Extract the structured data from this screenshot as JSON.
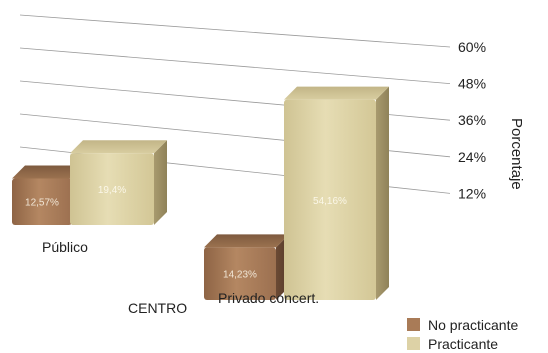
{
  "chart_data": {
    "type": "bar",
    "categories": [
      "Público",
      "Privado concert."
    ],
    "xlabel": "CENTRO",
    "ylabel": "Porcentaje",
    "ylim": [
      0,
      60
    ],
    "yticks": [
      12,
      24,
      36,
      48,
      60
    ],
    "ytick_labels": [
      "12%",
      "24%",
      "36%",
      "48%",
      "60%"
    ],
    "series": [
      {
        "name": "No practicante",
        "values": [
          12.57,
          14.23
        ],
        "labels": [
          "12,57%",
          "14,23%"
        ],
        "color": "#a97b57"
      },
      {
        "name": "Practicante",
        "values": [
          19.4,
          54.16
        ],
        "labels": [
          "19,4%",
          "54,16%"
        ],
        "color": "#ddd2a6"
      }
    ],
    "grid": true,
    "legend_position": "bottom-right"
  }
}
